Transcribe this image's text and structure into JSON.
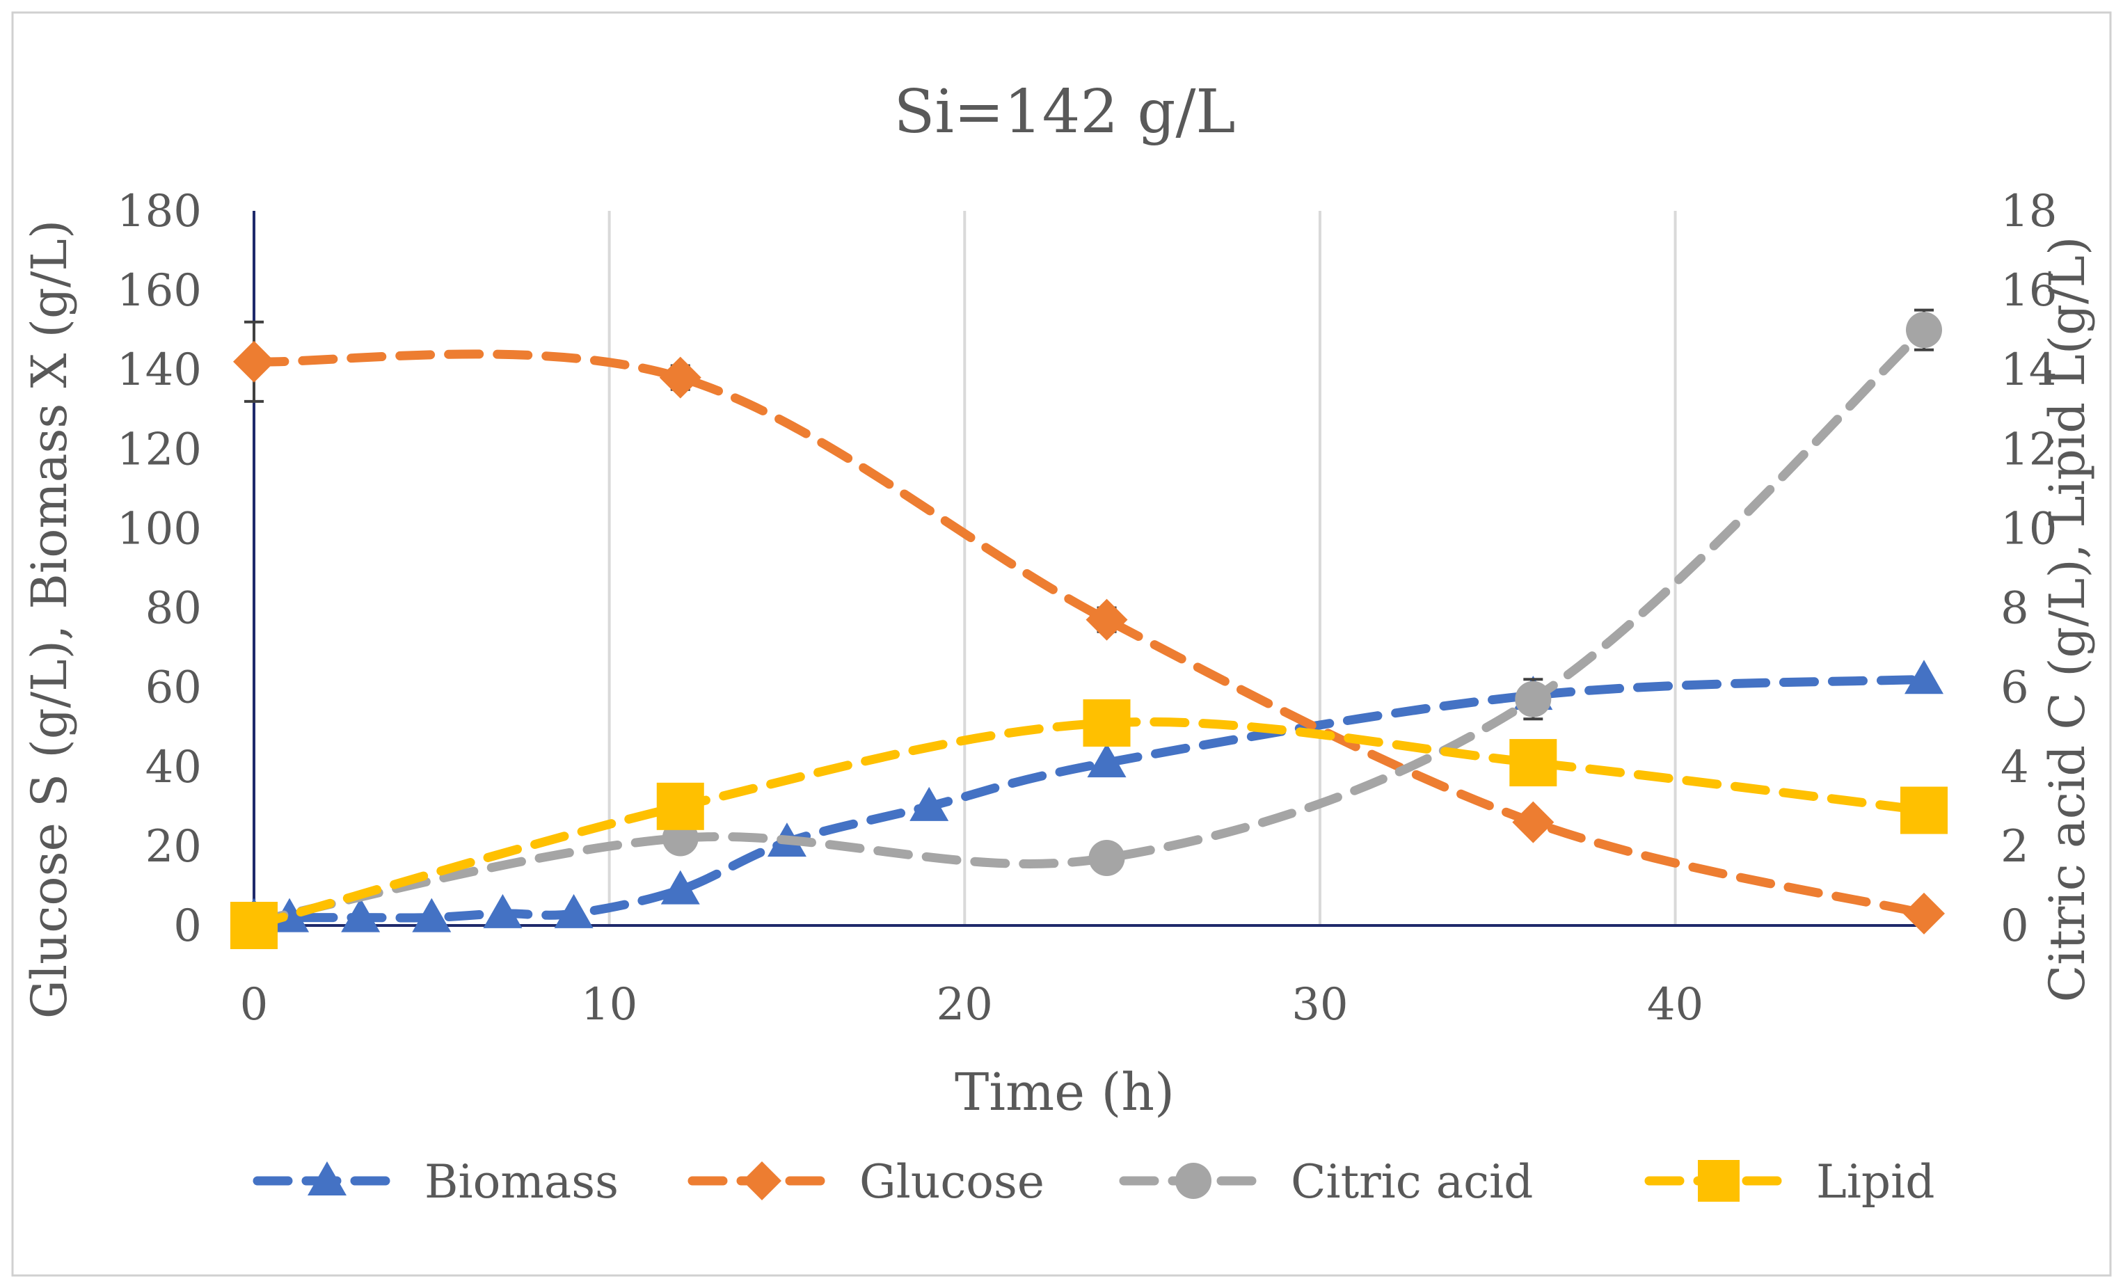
{
  "chart_data": {
    "type": "line",
    "title": "Si=142 g/L",
    "xlabel": "Time (h)",
    "ylabel_left": "Glucose S (g/L), Biomass X (g/L)",
    "ylabel_right": "Citric acid C (g/L), Lipid L(g/L)",
    "xlim": [
      0,
      47
    ],
    "ylim_left": [
      0,
      180
    ],
    "ylim_right": [
      0,
      18
    ],
    "x_ticks": [
      0,
      10,
      20,
      30,
      40
    ],
    "y_left_ticks": [
      0,
      20,
      40,
      60,
      80,
      100,
      120,
      140,
      160,
      180
    ],
    "y_right_ticks": [
      0,
      2,
      4,
      6,
      8,
      10,
      12,
      14,
      16,
      18
    ],
    "grid": "vertical",
    "legend_position": "bottom",
    "series": [
      {
        "name": "Biomass",
        "axis": "left",
        "marker": "triangle",
        "color": "#4472C4",
        "x": [
          0,
          1,
          3,
          5,
          7,
          9,
          12,
          15,
          19,
          24,
          36,
          47
        ],
        "y": [
          2,
          2,
          2,
          2,
          3,
          3,
          9,
          21,
          30,
          41,
          58,
          62
        ]
      },
      {
        "name": "Glucose",
        "axis": "left",
        "marker": "diamond",
        "color": "#ED7D31",
        "x": [
          0,
          12,
          24,
          36,
          47
        ],
        "y": [
          142,
          138,
          77,
          26,
          3
        ],
        "error": [
          10,
          3,
          3,
          2,
          1
        ]
      },
      {
        "name": "Citric acid",
        "axis": "right",
        "marker": "circle",
        "color": "#A5A5A5",
        "x": [
          0,
          12,
          24,
          36,
          47
        ],
        "y": [
          0.1,
          2.2,
          1.7,
          5.7,
          15
        ],
        "error": [
          0,
          0,
          0,
          0.5,
          0.5
        ]
      },
      {
        "name": "Lipid",
        "axis": "right",
        "marker": "square",
        "color": "#FFC000",
        "x": [
          0,
          12,
          24,
          36,
          47
        ],
        "y": [
          0,
          3,
          5.1,
          4.1,
          2.9
        ]
      }
    ]
  }
}
